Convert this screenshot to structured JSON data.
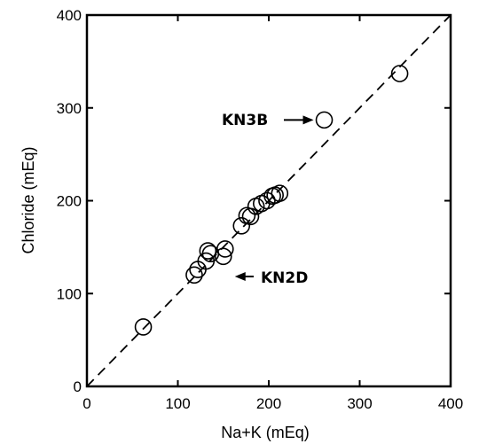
{
  "chart_data": {
    "type": "scatter",
    "xlabel": "Na+K (mEq)",
    "ylabel": "Chloride (mEq)",
    "xlim": [
      0,
      400
    ],
    "ylim": [
      0,
      400
    ],
    "xticks": [
      0,
      100,
      200,
      300,
      400
    ],
    "yticks": [
      0,
      100,
      200,
      300,
      400
    ],
    "grid": false,
    "reference_line": {
      "style": "dashed",
      "from": [
        0,
        0
      ],
      "to": [
        400,
        400
      ]
    },
    "points": [
      {
        "x": 62,
        "y": 64
      },
      {
        "x": 118,
        "y": 120
      },
      {
        "x": 122,
        "y": 126
      },
      {
        "x": 131,
        "y": 135
      },
      {
        "x": 133,
        "y": 146
      },
      {
        "x": 136,
        "y": 143
      },
      {
        "x": 150,
        "y": 140
      },
      {
        "x": 152,
        "y": 148
      },
      {
        "x": 170,
        "y": 173
      },
      {
        "x": 176,
        "y": 184
      },
      {
        "x": 180,
        "y": 183
      },
      {
        "x": 186,
        "y": 194
      },
      {
        "x": 192,
        "y": 197
      },
      {
        "x": 198,
        "y": 200
      },
      {
        "x": 204,
        "y": 205
      },
      {
        "x": 207,
        "y": 206
      },
      {
        "x": 212,
        "y": 208
      },
      {
        "x": 261,
        "y": 287
      },
      {
        "x": 344,
        "y": 337
      }
    ],
    "annotations": [
      {
        "text": "KN3B",
        "points_to": {
          "x": 261,
          "y": 287
        }
      },
      {
        "text": "KN2D",
        "points_to": {
          "x": 150,
          "y": 140
        }
      }
    ]
  }
}
